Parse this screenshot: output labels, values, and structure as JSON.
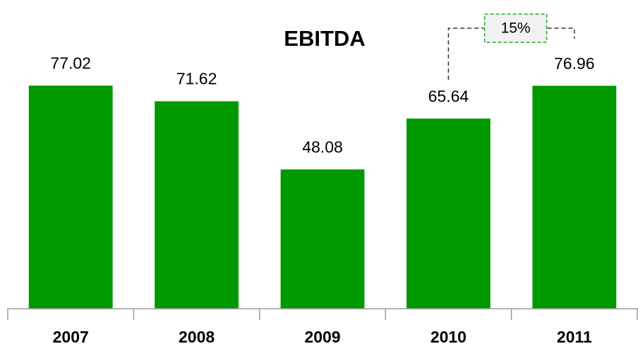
{
  "chart_data": {
    "type": "bar",
    "title": "EBITDA",
    "categories": [
      "2007",
      "2008",
      "2009",
      "2010",
      "2011"
    ],
    "values": [
      77.02,
      71.62,
      48.08,
      65.64,
      76.96
    ],
    "color": "#009900",
    "ylim": [
      0,
      100
    ],
    "annotation": "15%"
  }
}
